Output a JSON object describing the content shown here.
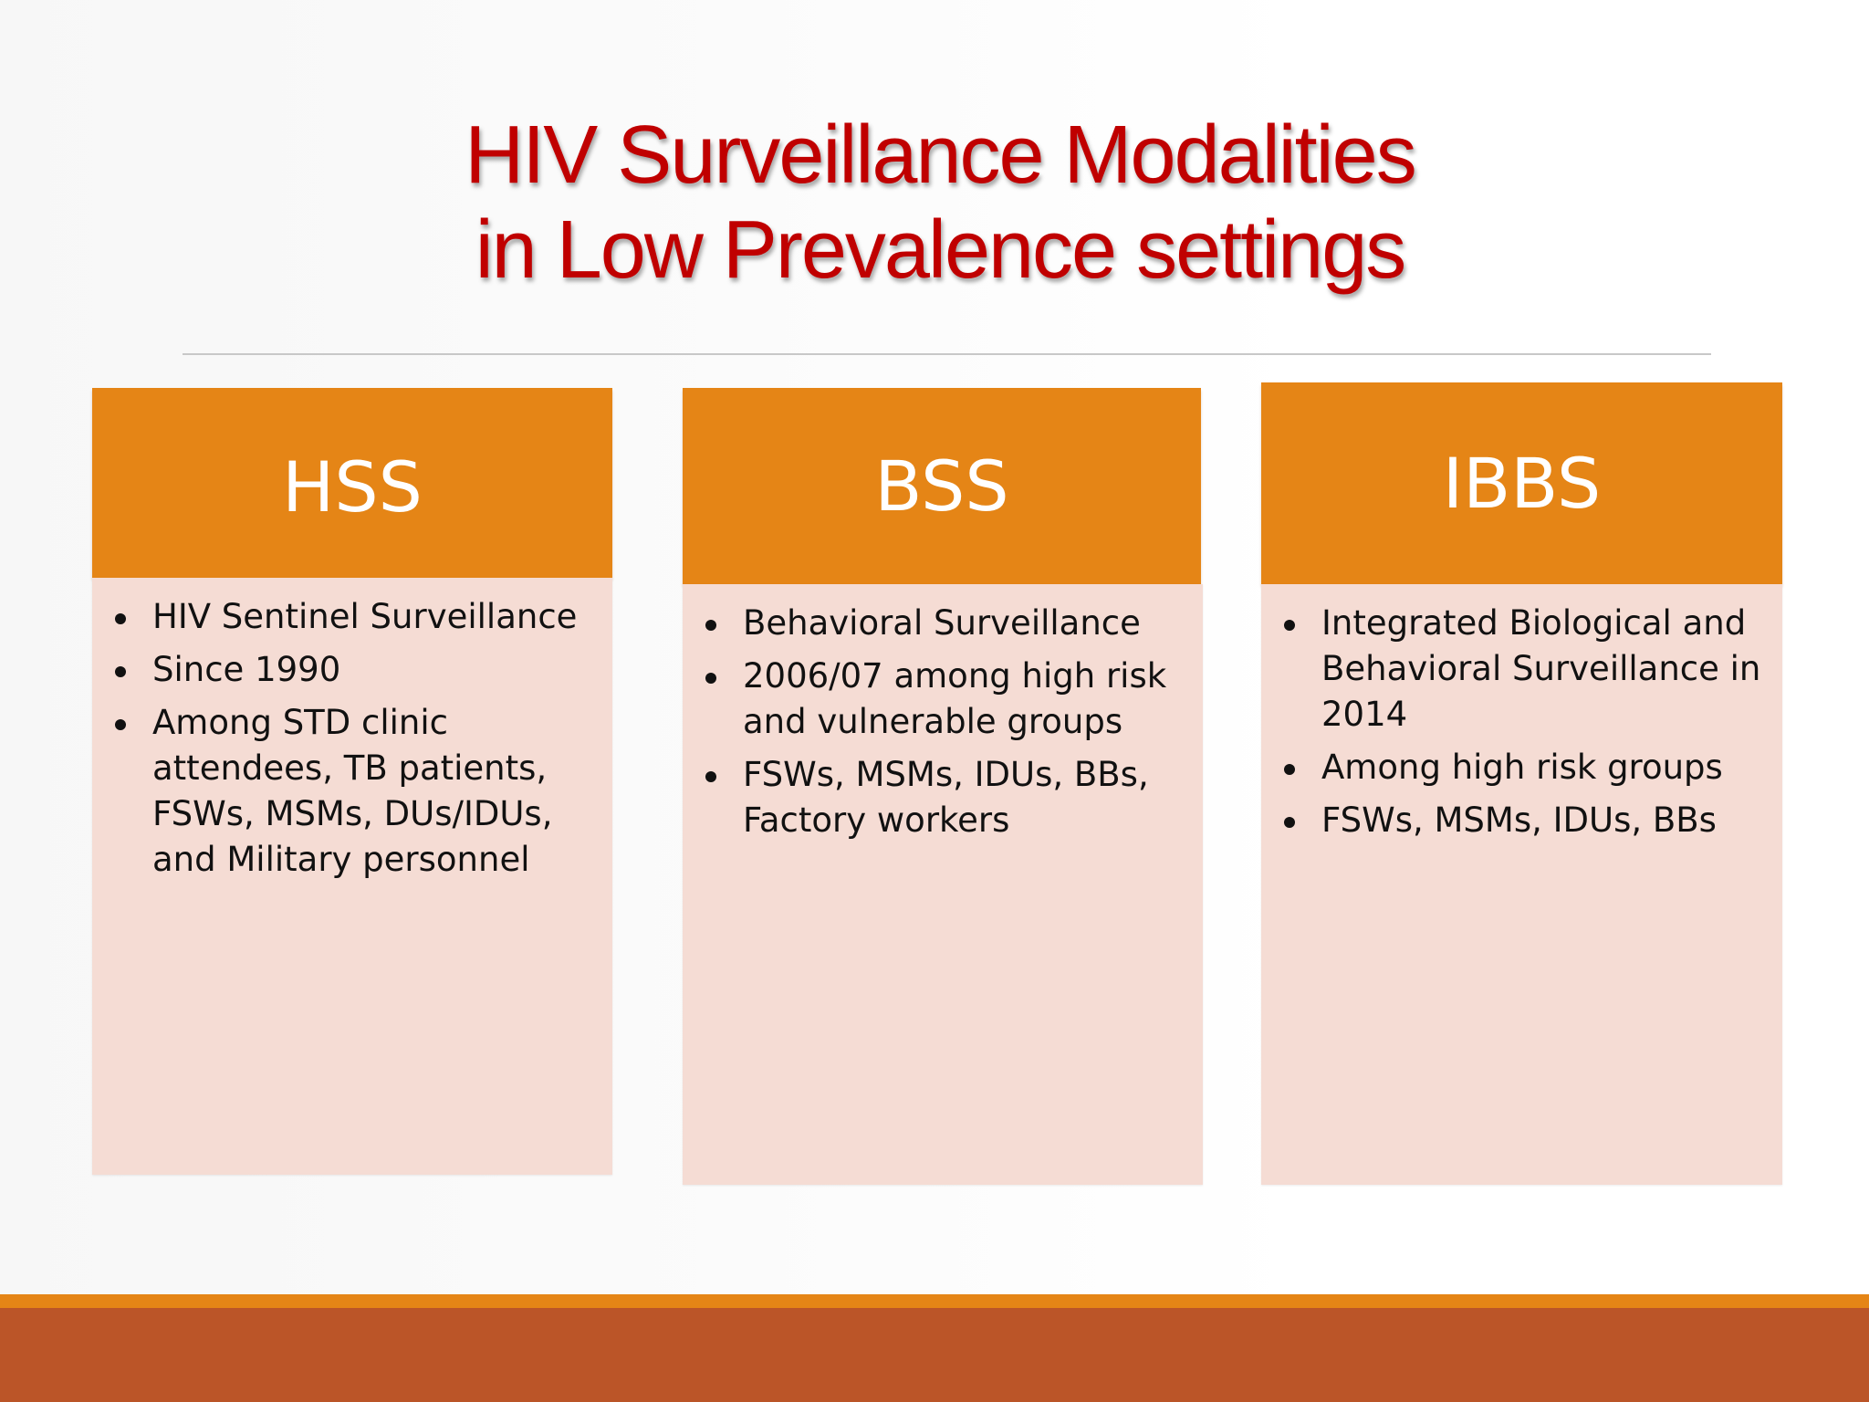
{
  "slide": {
    "title_line1": "HIV Surveillance Modalities",
    "title_line2": "in Low Prevalence settings"
  },
  "columns": [
    {
      "heading": "HSS",
      "bullets": [
        "HIV  Sentinel Surveillance",
        "Since 1990",
        "Among STD clinic attendees, TB patients, FSWs, MSMs, DUs/IDUs, and Military personnel"
      ]
    },
    {
      "heading": "BSS",
      "bullets": [
        "Behavioral Surveillance",
        "2006/07 among high risk and vulnerable groups",
        "FSWs, MSMs, IDUs, BBs, Factory workers"
      ]
    },
    {
      "heading": "IBBS",
      "bullets": [
        "Integrated Biological and Behavioral Surveillance  in 2014",
        "Among high risk groups",
        "FSWs, MSMs, IDUs, BBs"
      ]
    }
  ],
  "colors": {
    "title": "#c00000",
    "header": "#e58516",
    "body": "#f5dcd4",
    "footer_band": "#bb5528"
  }
}
